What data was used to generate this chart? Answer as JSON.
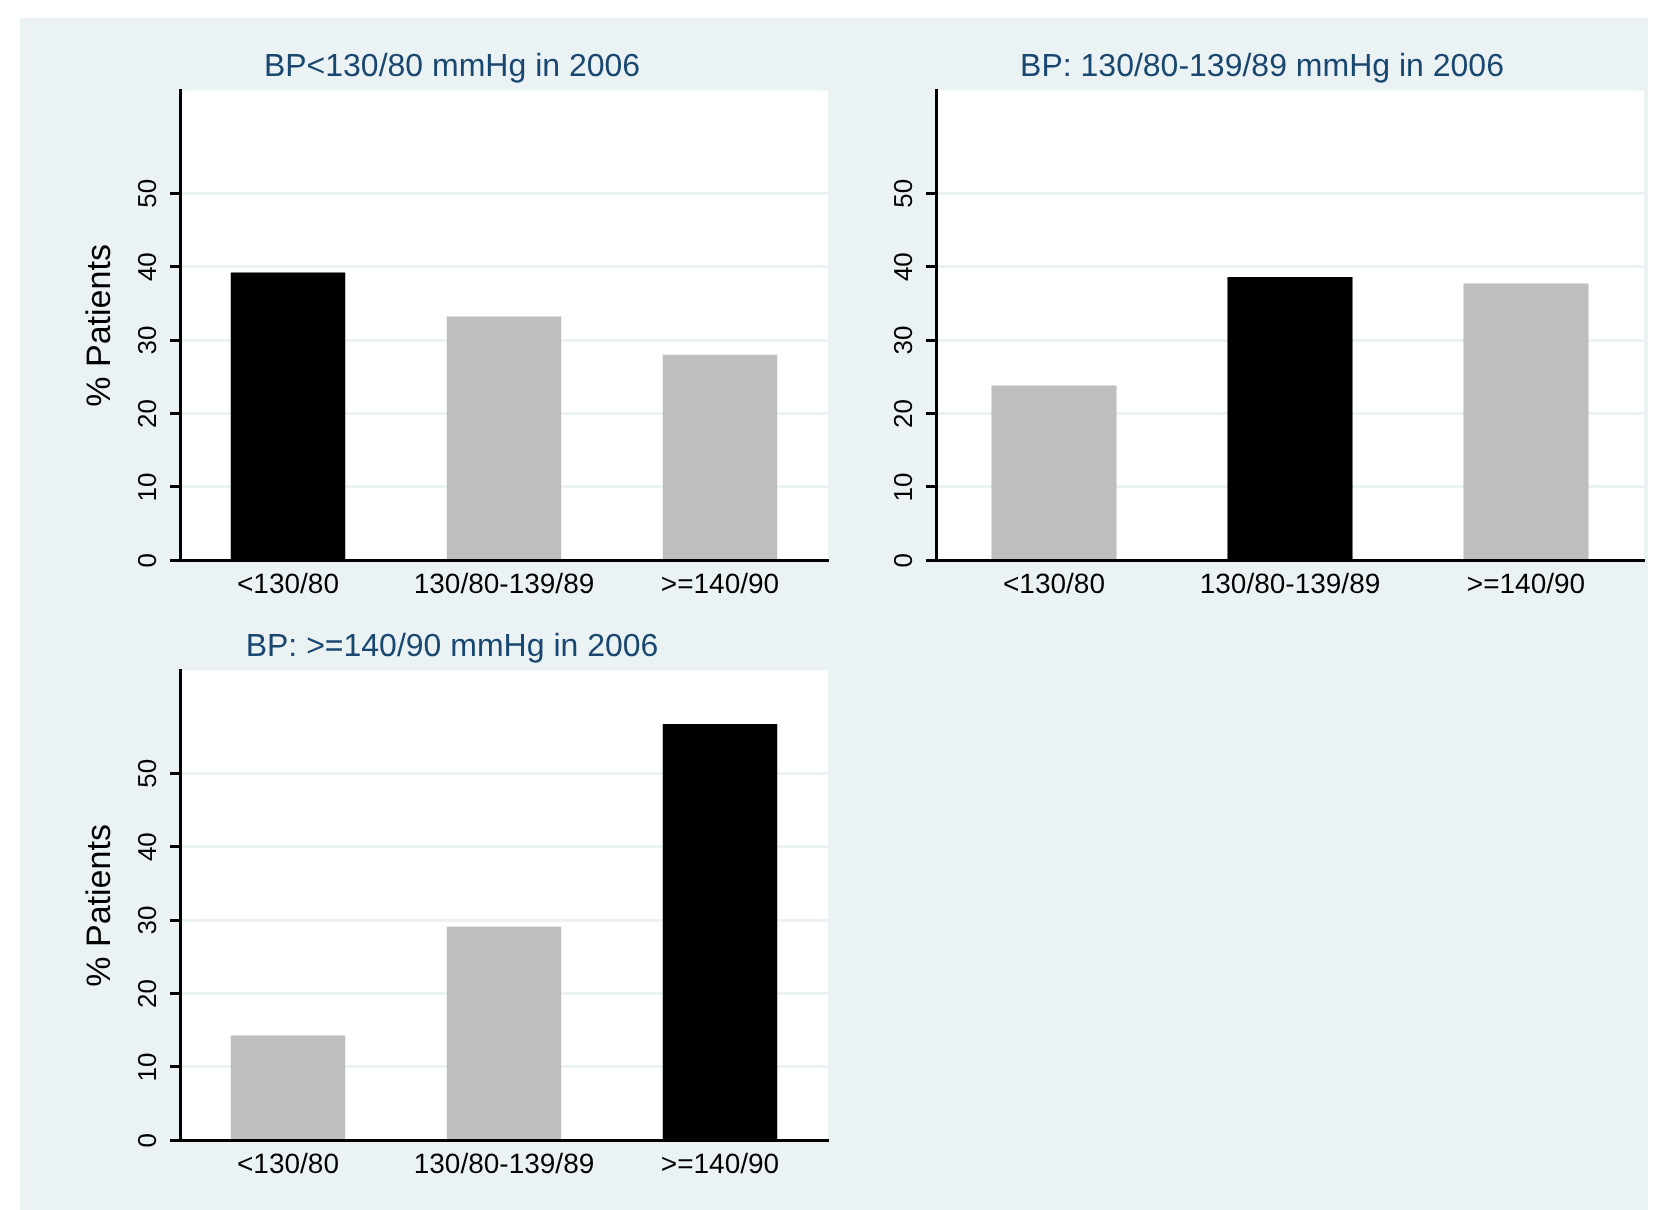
{
  "chart_data": [
    {
      "type": "bar",
      "title": "BP<130/80 mmHg in 2006",
      "ylabel": "% Patients",
      "categories": [
        "<130/80",
        "130/80-139/89",
        ">=140/90"
      ],
      "values": [
        39.2,
        33.2,
        28.0
      ],
      "colors": [
        "#000000",
        "#bebebe",
        "#bebebe"
      ],
      "ylim": [
        0,
        64
      ],
      "yticks": [
        0,
        10,
        20,
        30,
        40,
        50
      ],
      "grid": "y"
    },
    {
      "type": "bar",
      "title": "BP: 130/80-139/89 mmHg in 2006",
      "categories": [
        "<130/80",
        "130/80-139/89",
        ">=140/90"
      ],
      "values": [
        23.8,
        38.6,
        37.7
      ],
      "colors": [
        "#bebebe",
        "#000000",
        "#bebebe"
      ],
      "ylim": [
        0,
        64
      ],
      "yticks": [
        0,
        10,
        20,
        30,
        40,
        50
      ],
      "grid": "y"
    },
    {
      "type": "bar",
      "title": "BP: >=140/90 mmHg in 2006",
      "ylabel": "% Patients",
      "categories": [
        "<130/80",
        "130/80-139/89",
        ">=140/90"
      ],
      "values": [
        14.3,
        29.1,
        56.7
      ],
      "colors": [
        "#bebebe",
        "#bebebe",
        "#000000"
      ],
      "ylim": [
        0,
        64
      ],
      "yticks": [
        0,
        10,
        20,
        30,
        40,
        50
      ],
      "grid": "y"
    }
  ]
}
